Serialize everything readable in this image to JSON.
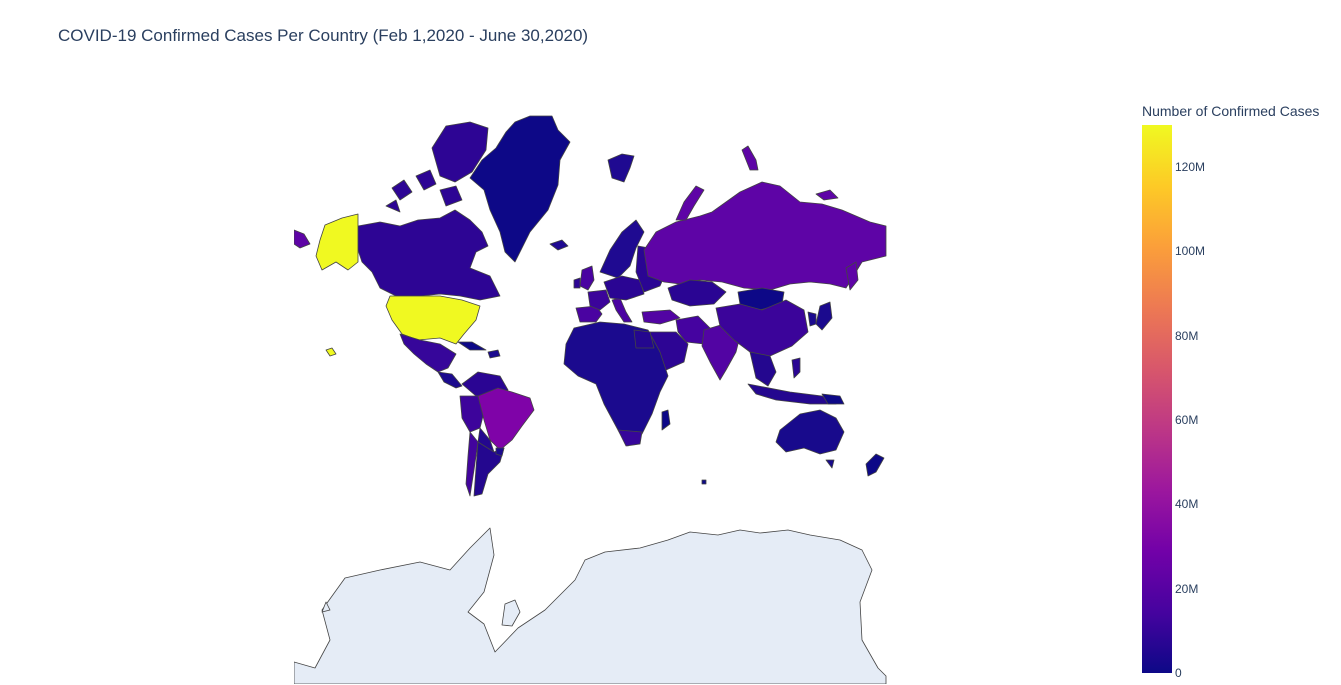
{
  "chart_data": {
    "type": "choropleth",
    "title": "COVID-19 Confirmed Cases Per Country (Feb 1,2020 - June 30,2020)",
    "colorbar": {
      "title": "Number of Confirmed Cases",
      "range": [
        0,
        130000000
      ],
      "ticks": [
        {
          "value": 0,
          "label": "0"
        },
        {
          "value": 20000000,
          "label": "20M"
        },
        {
          "value": 40000000,
          "label": "40M"
        },
        {
          "value": 60000000,
          "label": "60M"
        },
        {
          "value": 80000000,
          "label": "80M"
        },
        {
          "value": 100000000,
          "label": "100M"
        },
        {
          "value": 120000000,
          "label": "120M"
        }
      ],
      "colorscale": [
        "#0d0887",
        "#46039f",
        "#7201a8",
        "#9c179e",
        "#bd3786",
        "#d8576b",
        "#ed7953",
        "#fb9f3a",
        "#fdca26",
        "#f0f921"
      ]
    },
    "regions": [
      {
        "name": "United States",
        "value": 130000000
      },
      {
        "name": "Brazil",
        "value": 33000000
      },
      {
        "name": "Russia",
        "value": 30000000
      },
      {
        "name": "India",
        "value": 25000000
      },
      {
        "name": "United Kingdom",
        "value": 24000000
      },
      {
        "name": "Spain",
        "value": 23000000
      },
      {
        "name": "Italy",
        "value": 22000000
      },
      {
        "name": "Peru",
        "value": 14000000
      },
      {
        "name": "Chile",
        "value": 13000000
      },
      {
        "name": "Iran",
        "value": 18000000
      },
      {
        "name": "Turkey",
        "value": 17000000
      },
      {
        "name": "China",
        "value": 15000000
      },
      {
        "name": "Canada",
        "value": 9000000
      },
      {
        "name": "Mexico",
        "value": 12000000
      },
      {
        "name": "Greenland",
        "value": 0
      },
      {
        "name": "Australia",
        "value": 1000000
      },
      {
        "name": "Africa (most countries)",
        "value": 2000000
      },
      {
        "name": "Antarctica",
        "value": null
      }
    ]
  }
}
